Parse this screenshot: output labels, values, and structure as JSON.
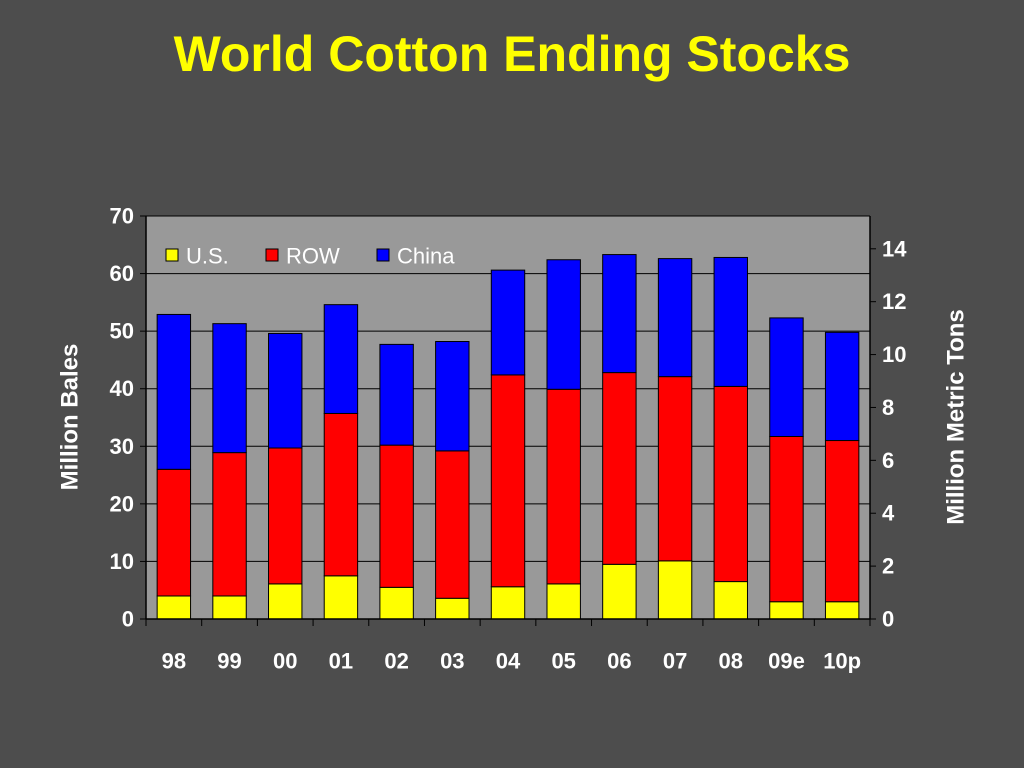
{
  "slide": {
    "title": "World Cotton Ending Stocks"
  },
  "colors": {
    "background": "#4d4d4d",
    "plot": "#999999",
    "title": "#ffff00",
    "us": "#ffff00",
    "row": "#ff0000",
    "china": "#0000ff"
  },
  "chart_data": {
    "type": "bar",
    "stacked": true,
    "categories": [
      "98",
      "99",
      "00",
      "01",
      "02",
      "03",
      "04",
      "05",
      "06",
      "07",
      "08",
      "09e",
      "10p"
    ],
    "series": [
      {
        "name": "U.S.",
        "color": "#ffff00",
        "values": [
          4.0,
          4.0,
          6.1,
          7.5,
          5.5,
          3.6,
          5.6,
          6.1,
          9.5,
          10.1,
          6.5,
          3.0,
          3.0
        ]
      },
      {
        "name": "ROW",
        "color": "#ff0000",
        "values": [
          22.0,
          24.9,
          23.6,
          28.2,
          24.7,
          25.6,
          36.8,
          33.8,
          33.3,
          32.0,
          33.9,
          28.7,
          28.0
        ]
      },
      {
        "name": "China",
        "color": "#0000ff",
        "values": [
          26.9,
          22.4,
          19.9,
          18.9,
          17.5,
          19.0,
          18.2,
          22.5,
          20.5,
          20.5,
          22.4,
          20.6,
          18.8
        ]
      }
    ],
    "ylabel": "Million Bales",
    "ylim": [
      0,
      70
    ],
    "yticks": [
      "0",
      "10",
      "20",
      "30",
      "40",
      "50",
      "60",
      "70"
    ],
    "y2label": "Million Metric Tons",
    "y2lim": [
      0,
      15.24
    ],
    "y2ticks": [
      "0",
      "2",
      "4",
      "6",
      "8",
      "10",
      "12",
      "14"
    ],
    "grid": true,
    "legend": "top-left"
  }
}
